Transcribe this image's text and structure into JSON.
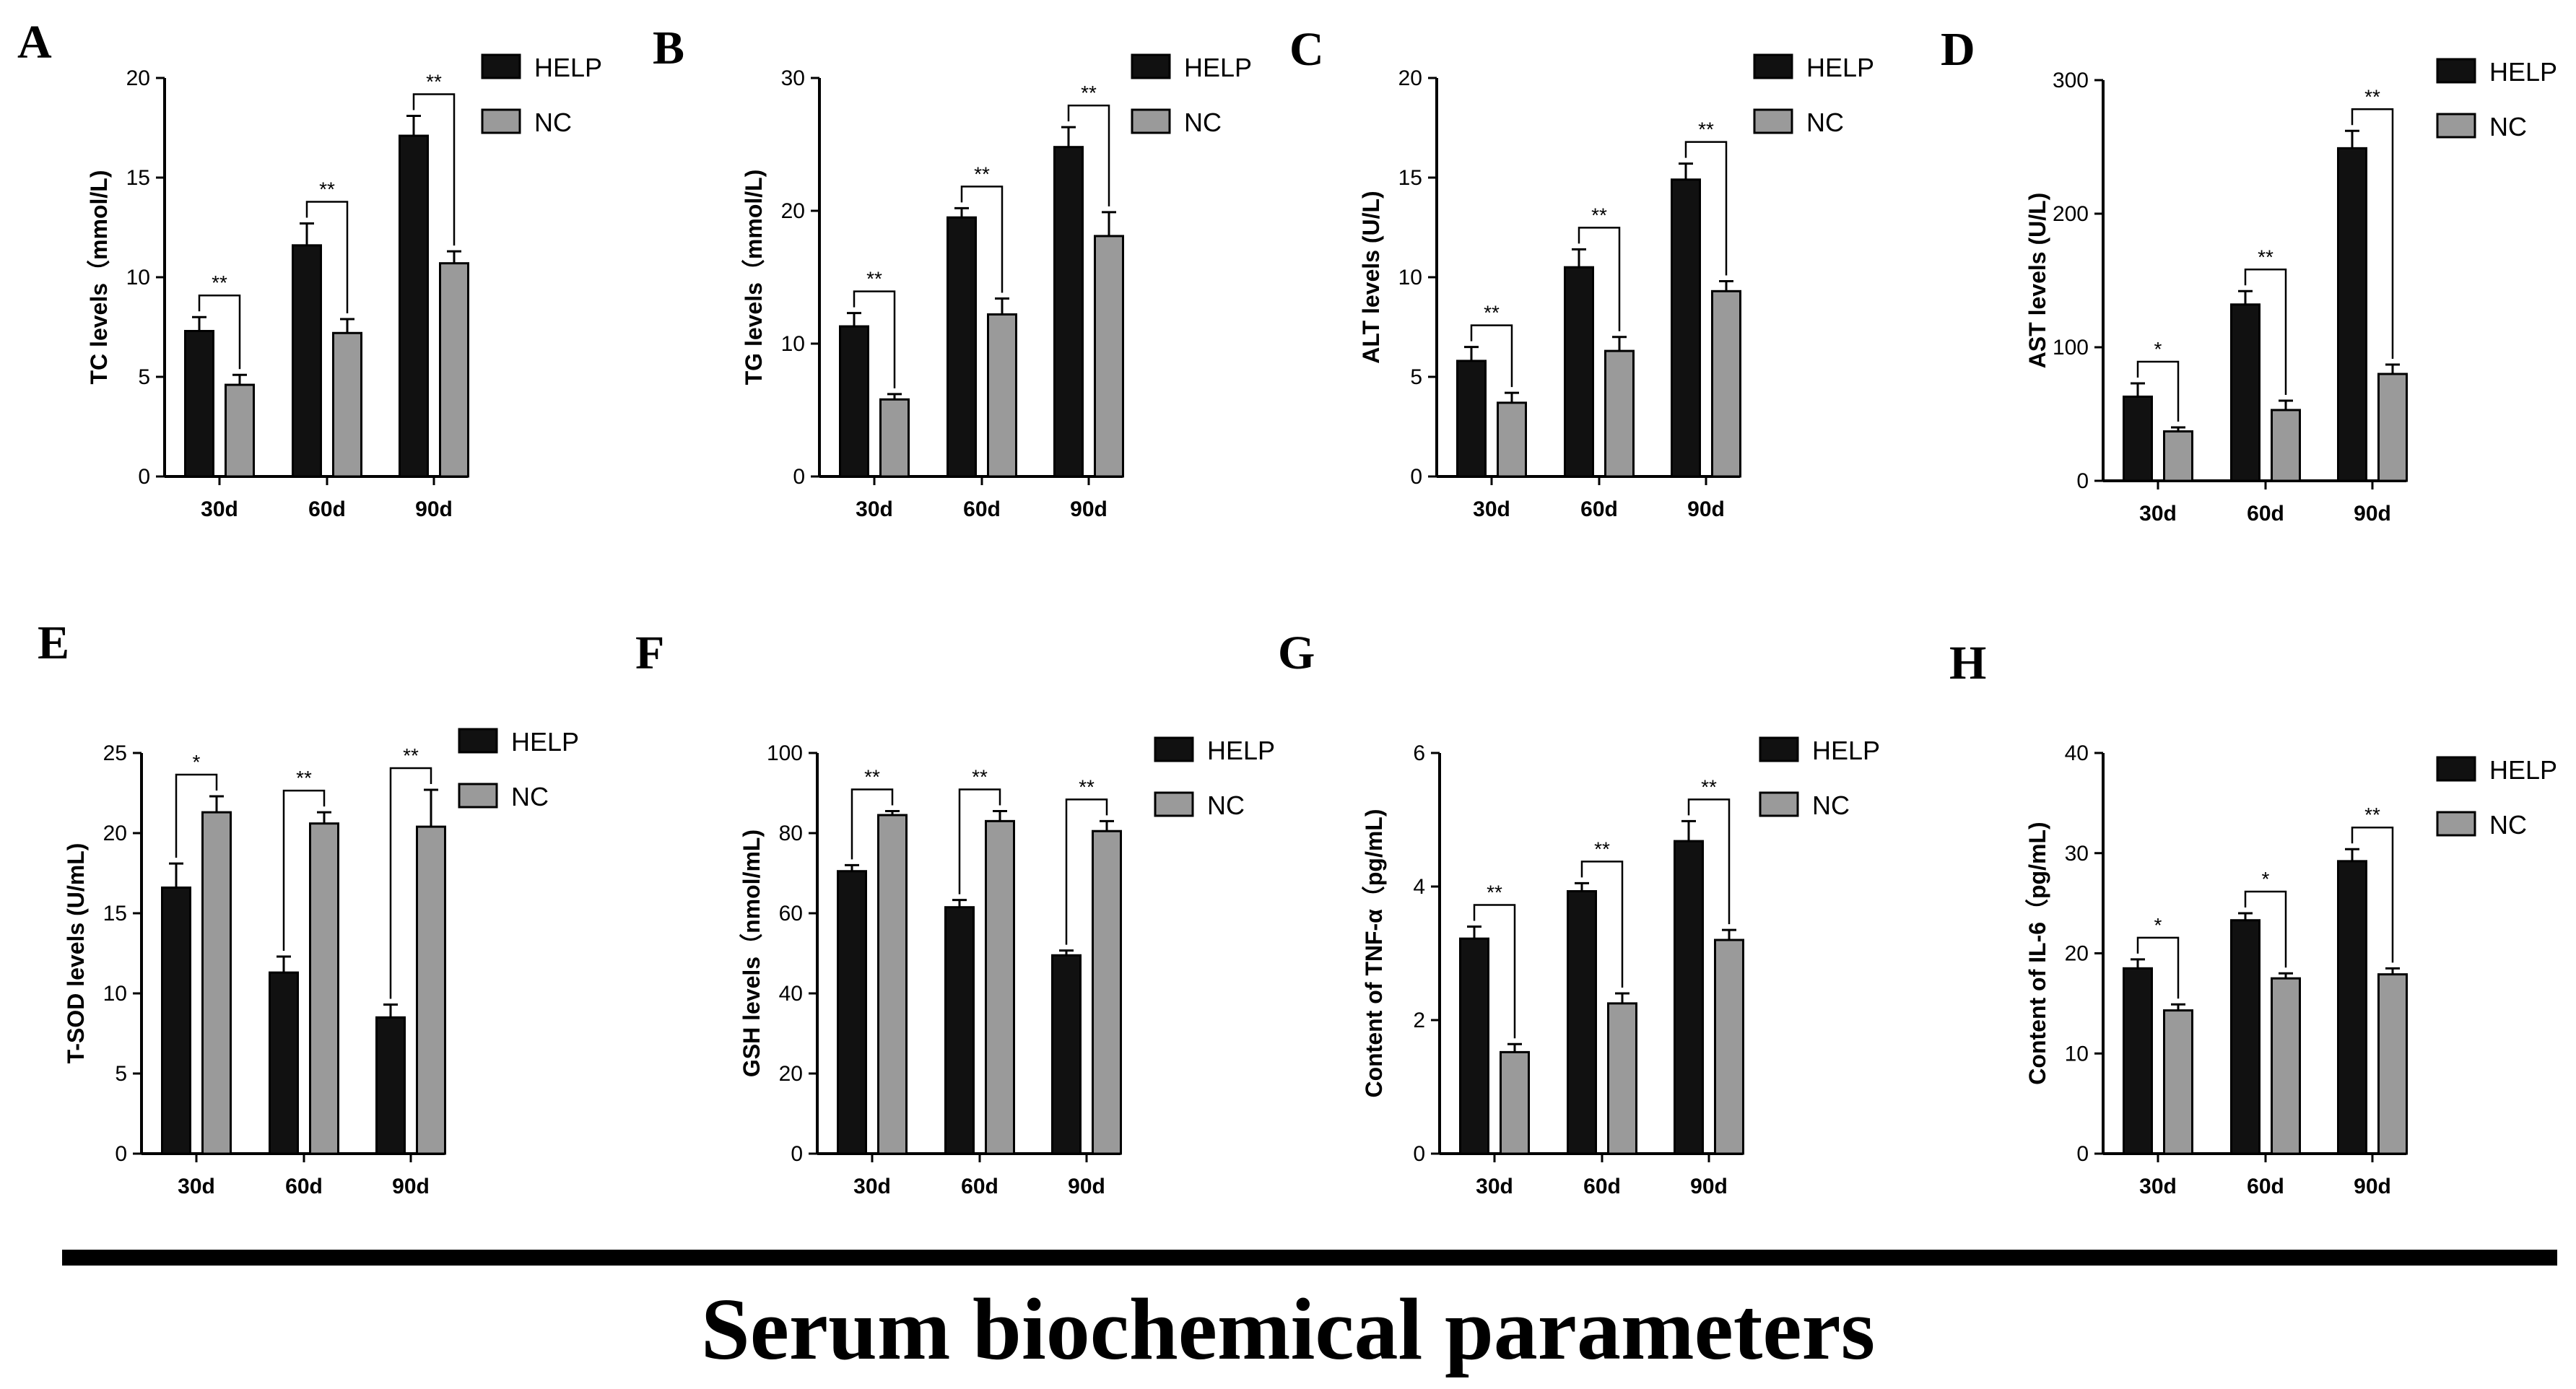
{
  "caption": "Serum biochemical parameters",
  "colors": {
    "help": "#111111",
    "nc": "#9a9a9a"
  },
  "legend": [
    "HELP",
    "NC"
  ],
  "chart_data": [
    {
      "panel": "A",
      "type": "bar",
      "ylabel": "TC levels（mmol/L)",
      "categories": [
        "30d",
        "60d",
        "90d"
      ],
      "ylim": [
        0,
        20
      ],
      "yticks": [
        0,
        5,
        10,
        15,
        20
      ],
      "series": [
        {
          "name": "HELP",
          "values": [
            7.3,
            11.6,
            17.1
          ],
          "errors": [
            0.7,
            1.1,
            1.0
          ]
        },
        {
          "name": "NC",
          "values": [
            4.6,
            7.2,
            10.7
          ],
          "errors": [
            0.5,
            0.7,
            0.6
          ]
        }
      ],
      "significance": [
        "**",
        "**",
        "**"
      ]
    },
    {
      "panel": "B",
      "type": "bar",
      "ylabel": "TG levels（mmol/L)",
      "categories": [
        "30d",
        "60d",
        "90d"
      ],
      "ylim": [
        0,
        30
      ],
      "yticks": [
        0,
        10,
        20,
        30
      ],
      "series": [
        {
          "name": "HELP",
          "values": [
            11.3,
            19.5,
            24.8
          ],
          "errors": [
            1.0,
            0.7,
            1.5
          ]
        },
        {
          "name": "NC",
          "values": [
            5.8,
            12.2,
            18.1
          ],
          "errors": [
            0.4,
            1.2,
            1.8
          ]
        }
      ],
      "significance": [
        "**",
        "**",
        "**"
      ]
    },
    {
      "panel": "C",
      "type": "bar",
      "ylabel": "ALT levels (U/L)",
      "categories": [
        "30d",
        "60d",
        "90d"
      ],
      "ylim": [
        0,
        20
      ],
      "yticks": [
        0,
        5,
        10,
        15,
        20
      ],
      "series": [
        {
          "name": "HELP",
          "values": [
            5.8,
            10.5,
            14.9
          ],
          "errors": [
            0.7,
            0.9,
            0.8
          ]
        },
        {
          "name": "NC",
          "values": [
            3.7,
            6.3,
            9.3
          ],
          "errors": [
            0.5,
            0.7,
            0.5
          ]
        }
      ],
      "significance": [
        "**",
        "**",
        "**"
      ]
    },
    {
      "panel": "D",
      "type": "bar",
      "ylabel": "AST levels (U/L)",
      "categories": [
        "30d",
        "60d",
        "90d"
      ],
      "ylim": [
        0,
        300
      ],
      "yticks": [
        0,
        100,
        200,
        300
      ],
      "series": [
        {
          "name": "HELP",
          "values": [
            63,
            132,
            249
          ],
          "errors": [
            10,
            10,
            13
          ]
        },
        {
          "name": "NC",
          "values": [
            37,
            53,
            80
          ],
          "errors": [
            3,
            7,
            7
          ]
        }
      ],
      "significance": [
        "*",
        "**",
        "**"
      ]
    },
    {
      "panel": "E",
      "type": "bar",
      "ylabel": "T-SOD levels (U/mL)",
      "categories": [
        "30d",
        "60d",
        "90d"
      ],
      "ylim": [
        0,
        25
      ],
      "yticks": [
        0,
        5,
        10,
        15,
        20,
        25
      ],
      "series": [
        {
          "name": "HELP",
          "values": [
            16.6,
            11.3,
            8.5
          ],
          "errors": [
            1.5,
            1.0,
            0.8
          ]
        },
        {
          "name": "NC",
          "values": [
            21.3,
            20.6,
            20.4
          ],
          "errors": [
            1.0,
            0.7,
            2.3
          ]
        }
      ],
      "significance": [
        "*",
        "**",
        "**"
      ]
    },
    {
      "panel": "F",
      "type": "bar",
      "ylabel": "GSH levels（nmol/mL)",
      "categories": [
        "30d",
        "60d",
        "90d"
      ],
      "ylim": [
        0,
        100
      ],
      "yticks": [
        0,
        20,
        40,
        60,
        80,
        100
      ],
      "series": [
        {
          "name": "HELP",
          "values": [
            70.5,
            61.5,
            49.5
          ],
          "errors": [
            1.5,
            1.8,
            1.2
          ]
        },
        {
          "name": "NC",
          "values": [
            84.5,
            83.0,
            80.5
          ],
          "errors": [
            1.0,
            2.5,
            2.5
          ]
        }
      ],
      "significance": [
        "**",
        "**",
        "**"
      ]
    },
    {
      "panel": "G",
      "type": "bar",
      "ylabel": "Content of TNF-α（pg/mL)",
      "categories": [
        "30d",
        "60d",
        "90d"
      ],
      "ylim": [
        0,
        6
      ],
      "yticks": [
        0,
        2,
        4,
        6
      ],
      "series": [
        {
          "name": "HELP",
          "values": [
            3.22,
            3.93,
            4.68
          ],
          "errors": [
            0.18,
            0.12,
            0.3
          ]
        },
        {
          "name": "NC",
          "values": [
            1.52,
            2.25,
            3.2
          ],
          "errors": [
            0.12,
            0.15,
            0.15
          ]
        }
      ],
      "significance": [
        "**",
        "**",
        "**"
      ]
    },
    {
      "panel": "H",
      "type": "bar",
      "ylabel": "Content of IL-6（pg/mL)",
      "categories": [
        "30d",
        "60d",
        "90d"
      ],
      "ylim": [
        0,
        40
      ],
      "yticks": [
        0,
        10,
        20,
        30,
        40
      ],
      "series": [
        {
          "name": "HELP",
          "values": [
            18.5,
            23.3,
            29.2
          ],
          "errors": [
            0.9,
            0.7,
            1.2
          ]
        },
        {
          "name": "NC",
          "values": [
            14.3,
            17.5,
            17.9
          ],
          "errors": [
            0.6,
            0.5,
            0.6
          ]
        }
      ],
      "significance": [
        "*",
        "*",
        "**"
      ]
    }
  ]
}
